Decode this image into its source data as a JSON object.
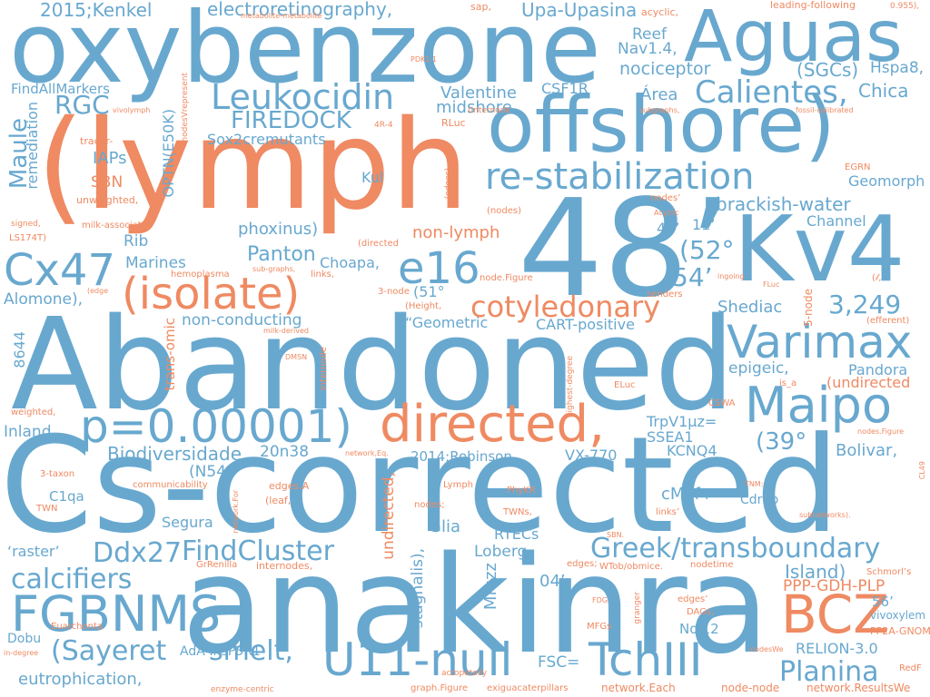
{
  "words": {
    "oxybenzone": "oxybenzone",
    "aguas": "Aguas",
    "offshore": "offshore)",
    "lymph_paren": "(lymph",
    "num_48": "48’",
    "kv4": "Kv4",
    "abandoned": "Abandoned",
    "cs_corrected": "Cs-corrected",
    "anakinra": "anakinra",
    "leukocidin": "Leukocidin",
    "calientes": "Calientes,",
    "re_stabilization": "re-stabilization",
    "cx47": "Cx47",
    "e16": "e16",
    "isolate": "(isolate)",
    "varimax": "Varimax",
    "maipo": "Maipo",
    "directed_big": "directed,",
    "pvalue": "p=0.00001)",
    "fgbnms": "FGBNMS",
    "u11_null": "U11-null",
    "tchiii": "TchIII",
    "bcz": "BCZ",
    "greek": "Greek/transboundary",
    "cotyledonary": "cotyledonary",
    "findcluster": "FindCluster",
    "calcifiers": "calcifiers",
    "sayeret": "(Sayeret",
    "smelt": "smelt,",
    "planina": "Planina",
    "ddx27": "Ddx27",
    "electroretinography": "electroretinography,",
    "kenkel": "2015;Kenkel",
    "upa": "Upa-Upasina",
    "reef": "Reef",
    "nav14": "Nav1.4,",
    "nociceptor": "nociceptor",
    "sgcs": "(SGCs)",
    "hspa8": "Hspa8,",
    "chica": "Chica",
    "firedock": "FIREDOCK",
    "rgc": "RGC",
    "valentine": "Valentine",
    "midshore": "midshore,",
    "csf1r": "CSF1R",
    "area": "Área",
    "maule": "Maule",
    "remediation": "remediation",
    "sox2": "Sox2cremutants",
    "findallmarkers": "FindAllMarkers",
    "iaps": "IAPs",
    "sbn": "SBN",
    "optn": "OPTN(E50K)",
    "brackish": "brackish-water",
    "geomorph": "Geomorph",
    "channel": "Channel",
    "kul": "Kul",
    "phoxinus": "phoxinus)",
    "nonlymph": "non-lymph",
    "rib": "Rib",
    "marines": "Marines",
    "panton": "Panton",
    "choapa": "Choapa,",
    "deg52": "(52°",
    "min54": "54’",
    "min44": "44’",
    "min11": "11’",
    "num3249": "3,249",
    "shediac": "Shediac",
    "alomone": "Alomone),",
    "deg51": "(51°",
    "nonconducting": "non-conducting",
    "geometric": "“Geometric",
    "cart": "CART-positive",
    "num8644": "8644",
    "epigeic": "epigeic,",
    "pandora": "Pandora",
    "undirected_paren": "(undirected",
    "inland": "Inland",
    "biodiversidade": "Biodiversidade",
    "n20n38": "20n38",
    "robinson": "2014;Robinson,",
    "vx770": "VX-770",
    "trpv1": "TrpV1μz=",
    "ssea1": "SSEA1",
    "kcnq4": "KCNQ4",
    "deg39": "(39°",
    "bolivar": "Bolivar,",
    "n54": "(N54°",
    "c1qa": "C1qa",
    "segura": "Segura",
    "glia": "Glia",
    "rtecs": "RTECs",
    "cmaf": "cMaf+",
    "cdr2p": "Cdr2p",
    "raster": "‘raster’",
    "loberg": "Loberg",
    "island": "Island)",
    "ppp_gdh": "PPP-GDH-PLP",
    "min56": "56’",
    "vivoxylem": "vivoxylem",
    "min04": "04’",
    "mfuzz": "Mfuzz",
    "stagnalis": "stagnalis),",
    "undirected_v": "undirected,",
    "dobu": "Dobu",
    "adainsp3r1": "AdA-InsP3R1",
    "relion": "RELION-3.0",
    "eutrophication": "eutrophication,",
    "fsc": "FSC=",
    "nol12": "Nol12",
    "pp2a": "PP2A-GNOM",
    "transomic": "trans-omic",
    "sap": "sap,",
    "acyclic": "acyclic,",
    "leading": "leading-following",
    "n0955": "0.955),",
    "metab": "metabolite-metabolite",
    "pdk11": "PDK1.1",
    "vivolymph": "vivolymph",
    "nodesvrep": "nodesVrepresent",
    "internode_p": "(Internode",
    "rluc": "RLuc",
    "subgraphs": "subgraphs,",
    "fossil": "fossil-calibrated",
    "n4r4": "4R-4",
    "colormap": "colormapFigure",
    "tracer": "tracer-",
    "unweighted": "unweighted,",
    "signed": "signed,",
    "milk_assoc": "milk-associated",
    "ls174t": "LS174T)",
    "edges_p": "(edges)",
    "nodes_p": "(nodes)",
    "nodes_q": "nodes’",
    "acyclic_cap": "Acyclic",
    "egrn": "EGRN",
    "directed_p": "(directed",
    "hemoplasma": "hemoplasma",
    "subgraphs_dash": "sub-graphs,",
    "links": "links,",
    "edge_p": "(edge",
    "three_node": "3-node",
    "node_figure": "node.Figure",
    "ingoing": "ingoing",
    "fluc": "FLuc",
    "glyph_p": "(𝓁,",
    "senders": "senders",
    "efferent": "(efferent)",
    "five_node": "5-node",
    "height": "(Height,",
    "milk_derived": "milk-derived",
    "dmsn": "DMSN",
    "internode": "Internode",
    "highest": "highest-degree",
    "eluc": "ELuc",
    "is_a": "is_a",
    "weighted": "weighted,",
    "node_star": "ᵢ*",
    "cswa": "CSWA",
    "nodes_figure": "nodes.Figure",
    "cl49": "CL49",
    "network_eq": "network,Eq.",
    "three_taxon": "3-taxon",
    "communicability": "communicability",
    "edges_a": "edges.A",
    "leaf": "(leaf,",
    "network_for": "network.For",
    "twn": "TWN",
    "lymph_small": "Lymph",
    "nodes_semi": "nodes;",
    "phykr": "PhyKR",
    "twns": "TWNs,",
    "links_q": "links’",
    "tnm": "TNM:",
    "subnetworks": "subnetworks).",
    "grenilla": "GrRenilla",
    "internodes": "internodes,",
    "sbn_small": "SBN.",
    "edges_semi": "edges;",
    "wtob": "WTob/obmice.",
    "nodetime": "nodetime",
    "schmorl": "Schmorl’s",
    "fdg": "FDG",
    "granger": "granger",
    "mfgs": "MFGs",
    "edges_q": "edges’",
    "dags": "DAGs,",
    "euarchonta": "Euarchonta",
    "indegree": "in-degree",
    "acropetally": "acropetally",
    "nodeswe": "nodesWe",
    "redf": "RedF",
    "enzyme": "enzyme-centric",
    "graph_figure": "graph.Figure",
    "exiguacat": "exiguacaterpillars",
    "network_each": "network.Each",
    "node_node": "node-node",
    "network_results": "network.ResultsWe"
  },
  "colors": {
    "blue": "#68a8cf",
    "orange": "#ef8a62",
    "background": "#ffffff"
  }
}
